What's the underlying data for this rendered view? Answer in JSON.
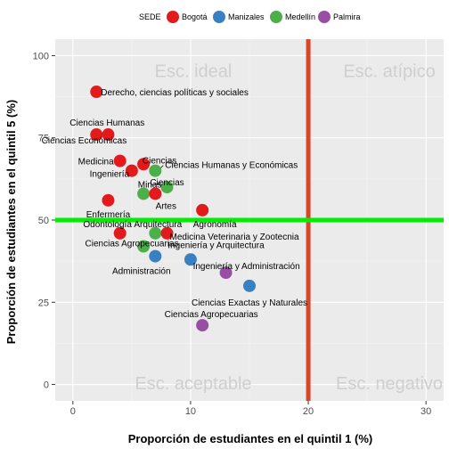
{
  "chart_data": {
    "type": "scatter",
    "xlabel": "Proporción de estudiantes en el quintil 1 (%)",
    "ylabel": "Proporción de estudiantes en el quintil 5 (%)",
    "xlim": [
      -1.5,
      31.5
    ],
    "ylim": [
      -5,
      105
    ],
    "x_ticks": [
      0,
      10,
      20,
      30
    ],
    "y_ticks": [
      0,
      25,
      50,
      75,
      100
    ],
    "grid": true,
    "legend": {
      "title": "SEDE",
      "position": "top",
      "entries": [
        {
          "name": "Bogotá",
          "color": "#e31a1c"
        },
        {
          "name": "Manizales",
          "color": "#3a7fc1"
        },
        {
          "name": "Medellín",
          "color": "#4daf4a"
        },
        {
          "name": "Palmira",
          "color": "#984ea3"
        }
      ]
    },
    "reference_lines": [
      {
        "orientation": "vertical",
        "value": 20,
        "color": "#d9472b"
      },
      {
        "orientation": "horizontal",
        "value": 50,
        "color": "#00ee00"
      }
    ],
    "quadrant_labels": [
      "Esc. ideal",
      "Esc. atípico",
      "Esc. aceptable",
      "Esc. negativo"
    ],
    "points": [
      {
        "label": "Derecho, ciencias políticas y sociales",
        "sede": "Bogotá",
        "x": 2,
        "y": 89
      },
      {
        "label": "Ciencias Humanas",
        "sede": "Bogotá",
        "x": 2,
        "y": 76
      },
      {
        "label": "Ciencias Económicas",
        "sede": "Bogotá",
        "x": 3,
        "y": 76
      },
      {
        "label": "Medicina",
        "sede": "Bogotá",
        "x": 4,
        "y": 68
      },
      {
        "label": "Ciencias",
        "sede": "Bogotá",
        "x": 6,
        "y": 67
      },
      {
        "label": "Ingeniería",
        "sede": "Bogotá",
        "x": 5,
        "y": 65
      },
      {
        "label": "Ciencias Humanas y Económicas",
        "sede": "Medellín",
        "x": 7,
        "y": 65
      },
      {
        "label": "Ciencias",
        "sede": "Medellín",
        "x": 8,
        "y": 60
      },
      {
        "label": "Minas",
        "sede": "Medellín",
        "x": 6,
        "y": 58
      },
      {
        "label": "Artes",
        "sede": "Bogotá",
        "x": 7,
        "y": 58
      },
      {
        "label": "Enfermería",
        "sede": "Bogotá",
        "x": 3,
        "y": 56
      },
      {
        "label": "Agronomía",
        "sede": "Bogotá",
        "x": 11,
        "y": 53
      },
      {
        "label": "Arquitectura",
        "sede": "Medellín",
        "x": 7,
        "y": 46
      },
      {
        "label": "Odontología",
        "sede": "Bogotá",
        "x": 4,
        "y": 46
      },
      {
        "label": "Medicina Veterinaria y Zootecnia",
        "sede": "Bogotá",
        "x": 8,
        "y": 46
      },
      {
        "label": "Ciencias Agropecuarias",
        "sede": "Medellín",
        "x": 6,
        "y": 42
      },
      {
        "label": "Ingeniería y Arquitectura",
        "sede": "Manizales",
        "x": 7,
        "y": 39
      },
      {
        "label": "Administración",
        "sede": "Manizales",
        "x": 10,
        "y": 38
      },
      {
        "label": "Ingeniería y Administración",
        "sede": "Palmira",
        "x": 13,
        "y": 34
      },
      {
        "label": "Ciencias Exactas y Naturales",
        "sede": "Manizales",
        "x": 15,
        "y": 30
      },
      {
        "label": "Ciencias Agropecuarias",
        "sede": "Palmira",
        "x": 11,
        "y": 18
      }
    ]
  }
}
